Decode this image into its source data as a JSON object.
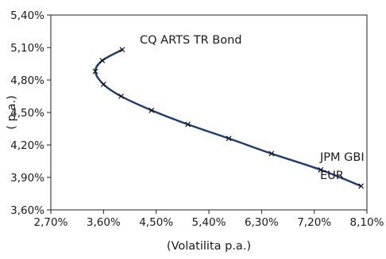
{
  "chart_data": {
    "type": "line",
    "title": "",
    "xlabel": "(Volatilita p.a.)",
    "ylabel": "( p.a.)",
    "xlim": [
      2.7,
      8.1
    ],
    "ylim": [
      3.6,
      5.4
    ],
    "x_ticks": [
      "2,70%",
      "3,60%",
      "4,50%",
      "5,40%",
      "6,30%",
      "7,20%",
      "8,10%"
    ],
    "y_ticks": [
      "3,60%",
      "3,90%",
      "4,20%",
      "4,50%",
      "4,80%",
      "5,10%",
      "5,40%"
    ],
    "grid": false,
    "legend": "none",
    "series": [
      {
        "color": "#1b3b7a",
        "marker": "x",
        "x": [
          3.92,
          3.58,
          3.46,
          3.6,
          3.9,
          4.42,
          5.04,
          5.74,
          6.47,
          7.31,
          8.0
        ],
        "y": [
          5.08,
          4.98,
          4.88,
          4.76,
          4.65,
          4.52,
          4.39,
          4.26,
          4.12,
          3.97,
          3.82
        ]
      }
    ],
    "annotations": {
      "top": "CQ ARTS TR Bond",
      "bottom_line1": "JPM GBI",
      "bottom_line2": "EUR"
    }
  }
}
